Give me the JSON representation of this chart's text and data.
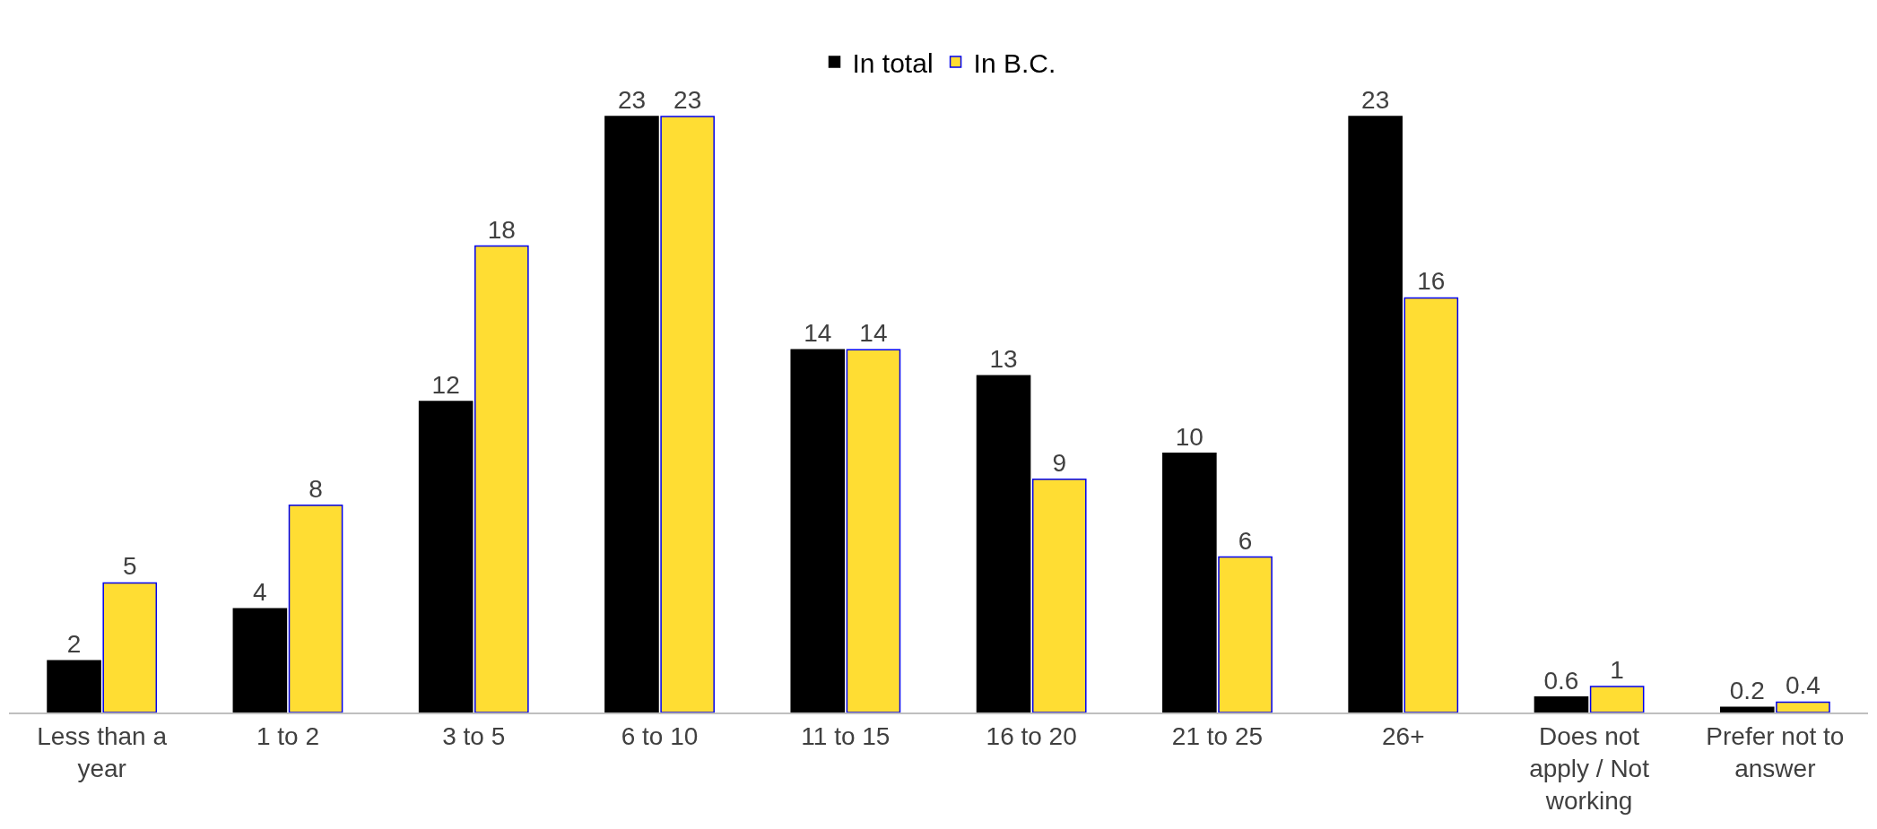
{
  "chart_data": {
    "type": "bar",
    "categories": [
      "Less than a year",
      "1 to 2",
      "3 to 5",
      "6 to 10",
      "11 to 15",
      "16 to 20",
      "21 to 25",
      "26+",
      "Does not apply / Not working",
      "Prefer not to answer"
    ],
    "series": [
      {
        "name": "In total",
        "color": "#000000",
        "values": [
          2,
          4,
          12,
          23,
          14,
          13,
          10,
          23,
          0.6,
          0.2
        ]
      },
      {
        "name": "In B.C.",
        "color": "#ffdd33",
        "values": [
          5,
          8,
          18,
          23,
          14,
          9,
          6,
          16,
          1,
          0.4
        ]
      }
    ],
    "data_labels": true,
    "legend": "top",
    "tick_labels": "x"
  }
}
